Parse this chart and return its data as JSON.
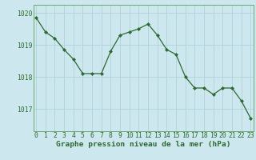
{
  "x": [
    0,
    1,
    2,
    3,
    4,
    5,
    6,
    7,
    8,
    9,
    10,
    11,
    12,
    13,
    14,
    15,
    16,
    17,
    18,
    19,
    20,
    21,
    22,
    23
  ],
  "y": [
    1019.85,
    1019.4,
    1019.2,
    1018.85,
    1018.55,
    1018.1,
    1018.1,
    1018.1,
    1018.8,
    1019.3,
    1019.4,
    1019.5,
    1019.65,
    1019.3,
    1018.85,
    1018.7,
    1018.0,
    1017.65,
    1017.65,
    1017.45,
    1017.65,
    1017.65,
    1017.25,
    1016.7
  ],
  "line_color": "#2d6a2d",
  "marker": "D",
  "marker_size": 2.0,
  "bg_color": "#cce8ee",
  "grid_color": "#aacdd6",
  "ylabel_ticks": [
    1017,
    1018,
    1019,
    1020
  ],
  "xlabel_ticks": [
    0,
    1,
    2,
    3,
    4,
    5,
    6,
    7,
    8,
    9,
    10,
    11,
    12,
    13,
    14,
    15,
    16,
    17,
    18,
    19,
    20,
    21,
    22,
    23
  ],
  "ylim": [
    1016.3,
    1020.25
  ],
  "xlim": [
    -0.3,
    23.3
  ],
  "xlabel": "Graphe pression niveau de la mer (hPa)",
  "xlabel_fontsize": 6.8,
  "tick_fontsize": 5.8,
  "axis_color": "#2d6a2d",
  "spine_color": "#6aaa6a",
  "bottom_bg": "#5a9a5a"
}
